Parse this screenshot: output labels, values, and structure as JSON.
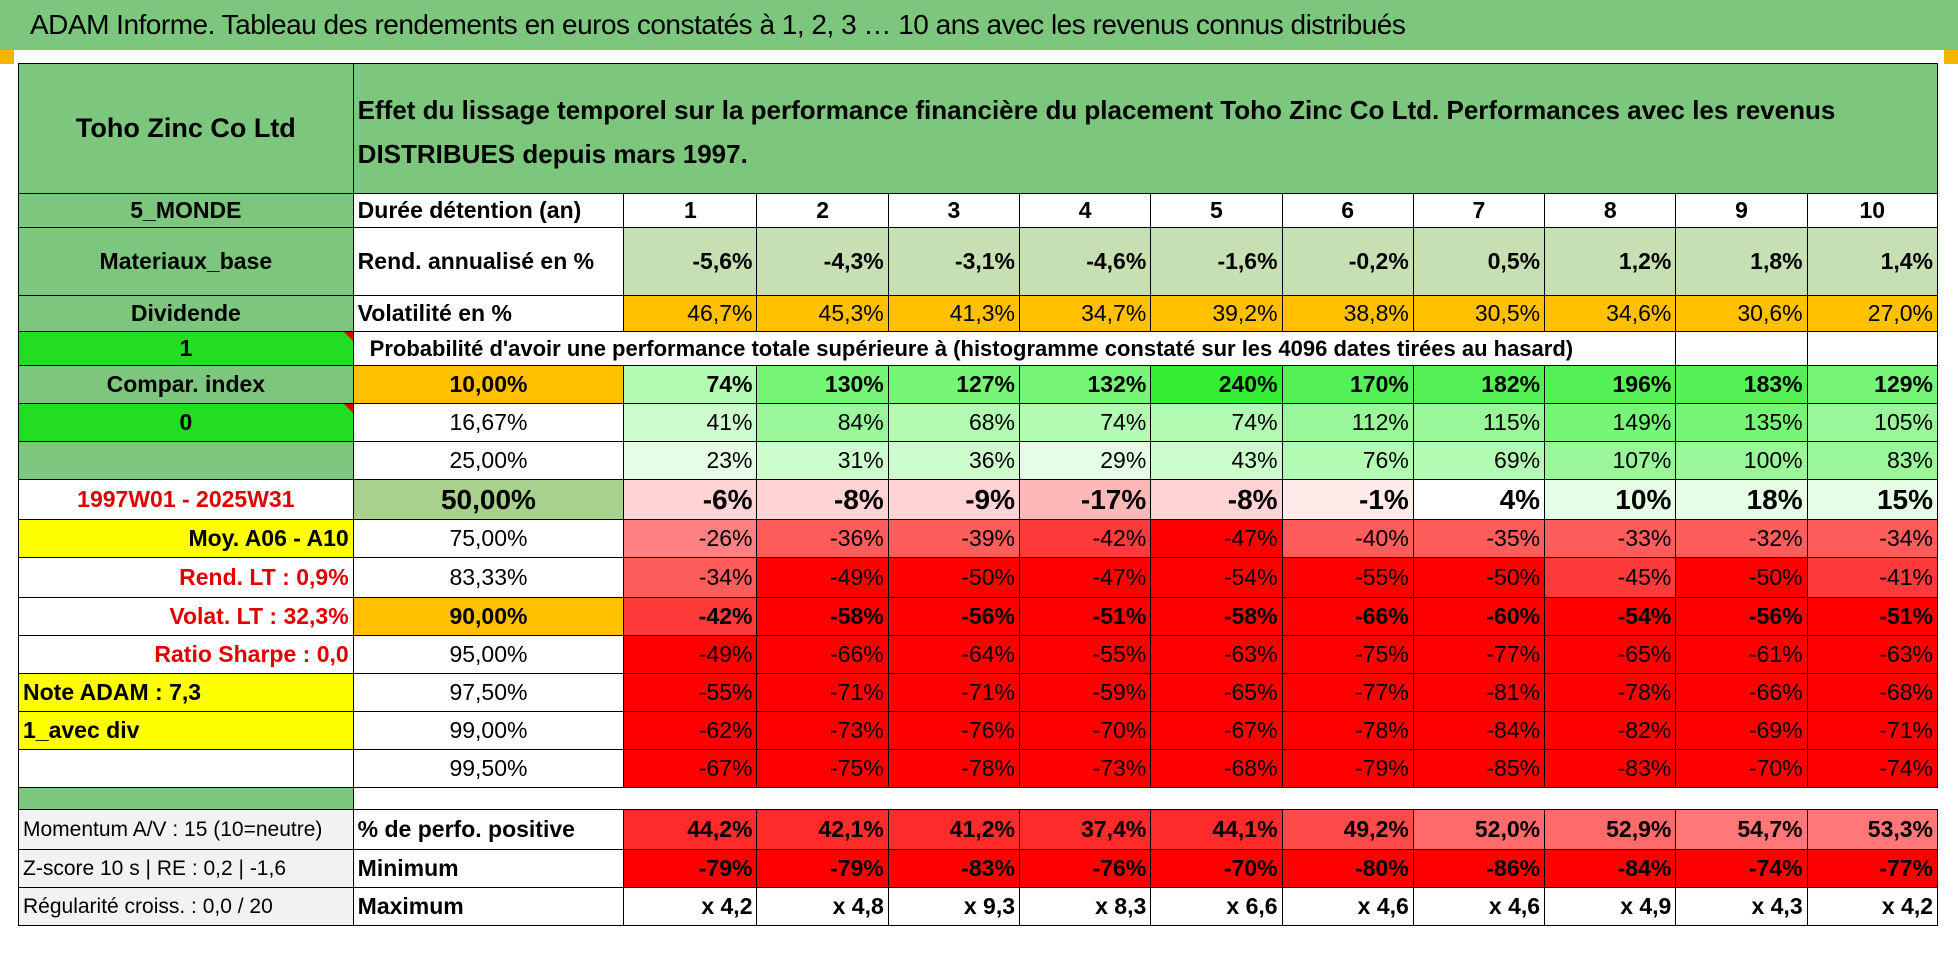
{
  "title": "ADAM Informe. Tableau des rendements en euros constatés à 1, 2, 3 … 10 ans avec les revenus connus distribués",
  "colors": {
    "banner": "#7dc67d",
    "green": "#7dc67d",
    "bright_green": "#22dd22",
    "yellow": "#ffff00",
    "orange": "#ffc000",
    "red": "#ff0000"
  },
  "company": "Toho Zinc Co Ltd",
  "description": "Effet du lissage temporel sur la performance financière du placement Toho Zinc Co Ltd. Performances avec les revenus DISTRIBUES depuis mars 1997.",
  "left": {
    "region": "5_MONDE",
    "sector": "Materiaux_base",
    "dividend": "Dividende",
    "flag1": "1",
    "compar": "Compar. index",
    "flag0": "0",
    "period": "1997W01 - 2025W31",
    "moy": "Moy. A06 - A10",
    "rend_lt": "Rend. LT :    0,9%",
    "volat_lt": "Volat. LT :    32,3%",
    "sharpe": "Ratio Sharpe :    0,0",
    "note": "Note ADAM : 7,3",
    "div_mode": "1_avec div",
    "momentum": "Momentum A/V : 15 (10=neutre)",
    "zscore": "Z-score 10 s | RE : 0,2 | -1,6",
    "regularite": "Régularité croiss. : 0,0 / 20"
  },
  "labels": {
    "duree": "Durée détention (an)",
    "rend": "Rend. annualisé en %",
    "vol": "Volatilité en %",
    "prob": "Probabilité d'avoir une performance totale supérieure à (histogramme constaté sur les 4096 dates tirées au hasard)",
    "pos": "% de perfo. positive",
    "min": "Minimum",
    "max": "Maximum"
  },
  "years": [
    "1",
    "2",
    "3",
    "4",
    "5",
    "6",
    "7",
    "8",
    "9",
    "10"
  ],
  "rend": [
    "-5,6%",
    "-4,3%",
    "-3,1%",
    "-4,6%",
    "-1,6%",
    "-0,2%",
    "0,5%",
    "1,2%",
    "1,8%",
    "1,4%"
  ],
  "vol": [
    "46,7%",
    "45,3%",
    "41,3%",
    "34,7%",
    "39,2%",
    "38,8%",
    "30,5%",
    "34,6%",
    "30,6%",
    "27,0%"
  ],
  "percentile_rows": [
    {
      "p": "10,00%",
      "v": [
        "74%",
        "130%",
        "127%",
        "132%",
        "240%",
        "170%",
        "182%",
        "196%",
        "183%",
        "129%"
      ]
    },
    {
      "p": "16,67%",
      "v": [
        "41%",
        "84%",
        "68%",
        "74%",
        "74%",
        "112%",
        "115%",
        "149%",
        "135%",
        "105%"
      ]
    },
    {
      "p": "25,00%",
      "v": [
        "23%",
        "31%",
        "36%",
        "29%",
        "43%",
        "76%",
        "69%",
        "107%",
        "100%",
        "83%"
      ]
    },
    {
      "p": "50,00%",
      "v": [
        "-6%",
        "-8%",
        "-9%",
        "-17%",
        "-8%",
        "-1%",
        "4%",
        "10%",
        "18%",
        "15%"
      ]
    },
    {
      "p": "75,00%",
      "v": [
        "-26%",
        "-36%",
        "-39%",
        "-42%",
        "-47%",
        "-40%",
        "-35%",
        "-33%",
        "-32%",
        "-34%"
      ]
    },
    {
      "p": "83,33%",
      "v": [
        "-34%",
        "-49%",
        "-50%",
        "-47%",
        "-54%",
        "-55%",
        "-50%",
        "-45%",
        "-50%",
        "-41%"
      ]
    },
    {
      "p": "90,00%",
      "v": [
        "-42%",
        "-58%",
        "-56%",
        "-51%",
        "-58%",
        "-66%",
        "-60%",
        "-54%",
        "-56%",
        "-51%"
      ]
    },
    {
      "p": "95,00%",
      "v": [
        "-49%",
        "-66%",
        "-64%",
        "-55%",
        "-63%",
        "-75%",
        "-77%",
        "-65%",
        "-61%",
        "-63%"
      ]
    },
    {
      "p": "97,50%",
      "v": [
        "-55%",
        "-71%",
        "-71%",
        "-59%",
        "-65%",
        "-77%",
        "-81%",
        "-78%",
        "-66%",
        "-68%"
      ]
    },
    {
      "p": "99,00%",
      "v": [
        "-62%",
        "-73%",
        "-76%",
        "-70%",
        "-67%",
        "-78%",
        "-84%",
        "-82%",
        "-69%",
        "-71%"
      ]
    },
    {
      "p": "99,50%",
      "v": [
        "-67%",
        "-75%",
        "-78%",
        "-73%",
        "-68%",
        "-79%",
        "-85%",
        "-83%",
        "-70%",
        "-74%"
      ]
    }
  ],
  "pos": [
    "44,2%",
    "42,1%",
    "41,2%",
    "37,4%",
    "44,1%",
    "49,2%",
    "52,0%",
    "52,9%",
    "54,7%",
    "53,3%"
  ],
  "min": [
    "-79%",
    "-79%",
    "-83%",
    "-76%",
    "-70%",
    "-80%",
    "-86%",
    "-84%",
    "-74%",
    "-77%"
  ],
  "max": [
    "x 4,2",
    "x 4,8",
    "x 9,3",
    "x 8,3",
    "x 6,6",
    "x 4,6",
    "x 4,6",
    "x 4,9",
    "x 4,3",
    "x 4,2"
  ]
}
